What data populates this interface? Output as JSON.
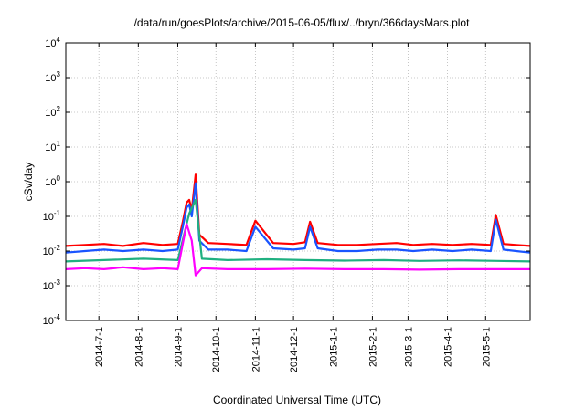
{
  "chart_data": {
    "type": "line",
    "title": "/data/run/goesPlots/archive/2015-06-05/flux/../bryn/366daysMars.plot",
    "xlabel": "Coordinated Universal Time (UTC)",
    "ylabel": "cSv/day",
    "yscale": "log",
    "ylim": [
      0.0001,
      10000
    ],
    "xlim": [
      "2014-06-05",
      "2015-06-05"
    ],
    "grid": true,
    "y_ticks": [
      {
        "base": "10",
        "exp": "-4",
        "value": 0.0001
      },
      {
        "base": "10",
        "exp": "-3",
        "value": 0.001
      },
      {
        "base": "10",
        "exp": "-2",
        "value": 0.01
      },
      {
        "base": "10",
        "exp": "-1",
        "value": 0.1
      },
      {
        "base": "10",
        "exp": "0",
        "value": 1
      },
      {
        "base": "10",
        "exp": "1",
        "value": 10
      },
      {
        "base": "10",
        "exp": "2",
        "value": 100
      },
      {
        "base": "10",
        "exp": "3",
        "value": 1000
      },
      {
        "base": "10",
        "exp": "4",
        "value": 10000
      }
    ],
    "x_ticks": [
      "2014-7-1",
      "2014-8-1",
      "2014-9-1",
      "2014-10-1",
      "2014-11-1",
      "2014-12-1",
      "2015-1-1",
      "2015-2-1",
      "2015-3-1",
      "2015-4-1",
      "2015-5-1"
    ],
    "series": [
      {
        "color": "#ff0000",
        "x": [
          "2014-06-05",
          "2014-06-20",
          "2014-07-05",
          "2014-07-20",
          "2014-08-05",
          "2014-08-20",
          "2014-09-01",
          "2014-09-05",
          "2014-09-08",
          "2014-09-10",
          "2014-09-12",
          "2014-09-15",
          "2014-09-18",
          "2014-09-25",
          "2014-10-10",
          "2014-10-25",
          "2014-11-01",
          "2014-11-15",
          "2014-12-01",
          "2014-12-10",
          "2014-12-14",
          "2014-12-20",
          "2015-01-05",
          "2015-01-20",
          "2015-02-05",
          "2015-02-20",
          "2015-03-05",
          "2015-03-20",
          "2015-04-05",
          "2015-04-20",
          "2015-05-05",
          "2015-05-09",
          "2015-05-15",
          "2015-05-25",
          "2015-06-05"
        ],
        "y": [
          0.014,
          0.015,
          0.016,
          0.014,
          0.017,
          0.015,
          0.016,
          0.07,
          0.25,
          0.3,
          0.15,
          1.6,
          0.03,
          0.017,
          0.016,
          0.015,
          0.075,
          0.017,
          0.016,
          0.018,
          0.07,
          0.017,
          0.015,
          0.015,
          0.016,
          0.017,
          0.015,
          0.016,
          0.015,
          0.016,
          0.015,
          0.11,
          0.016,
          0.015,
          0.014
        ]
      },
      {
        "color": "#1a55ff",
        "x": [
          "2014-06-05",
          "2014-06-20",
          "2014-07-05",
          "2014-07-20",
          "2014-08-05",
          "2014-08-20",
          "2014-09-01",
          "2014-09-05",
          "2014-09-08",
          "2014-09-10",
          "2014-09-12",
          "2014-09-15",
          "2014-09-18",
          "2014-09-25",
          "2014-10-10",
          "2014-10-25",
          "2014-11-01",
          "2014-11-15",
          "2014-12-01",
          "2014-12-10",
          "2014-12-14",
          "2014-12-20",
          "2015-01-05",
          "2015-01-20",
          "2015-02-05",
          "2015-02-20",
          "2015-03-05",
          "2015-03-20",
          "2015-04-05",
          "2015-04-20",
          "2015-05-05",
          "2015-05-09",
          "2015-05-15",
          "2015-05-25",
          "2015-06-05"
        ],
        "y": [
          0.009,
          0.01,
          0.011,
          0.01,
          0.011,
          0.01,
          0.011,
          0.05,
          0.18,
          0.22,
          0.1,
          0.9,
          0.02,
          0.011,
          0.011,
          0.01,
          0.05,
          0.012,
          0.011,
          0.012,
          0.05,
          0.012,
          0.01,
          0.01,
          0.011,
          0.011,
          0.01,
          0.011,
          0.01,
          0.011,
          0.01,
          0.08,
          0.011,
          0.01,
          0.009
        ]
      },
      {
        "color": "#20b080",
        "x": [
          "2014-06-05",
          "2014-07-05",
          "2014-08-05",
          "2014-09-01",
          "2014-09-10",
          "2014-09-15",
          "2014-09-20",
          "2014-10-10",
          "2014-11-10",
          "2014-12-10",
          "2015-01-10",
          "2015-02-10",
          "2015-03-10",
          "2015-04-10",
          "2015-05-10",
          "2015-06-05"
        ],
        "y": [
          0.005,
          0.0055,
          0.006,
          0.0055,
          0.12,
          0.3,
          0.006,
          0.0055,
          0.0058,
          0.0055,
          0.0053,
          0.0055,
          0.0052,
          0.0054,
          0.0052,
          0.005
        ]
      },
      {
        "color": "#ff00ff",
        "x": [
          "2014-06-05",
          "2014-06-20",
          "2014-07-05",
          "2014-07-20",
          "2014-08-05",
          "2014-08-20",
          "2014-09-01",
          "2014-09-08",
          "2014-09-12",
          "2014-09-15",
          "2014-09-20",
          "2014-10-10",
          "2014-11-10",
          "2014-12-10",
          "2015-01-10",
          "2015-02-10",
          "2015-03-10",
          "2015-04-10",
          "2015-05-10",
          "2015-06-05"
        ],
        "y": [
          0.003,
          0.0032,
          0.003,
          0.0034,
          0.003,
          0.0032,
          0.003,
          0.06,
          0.02,
          0.002,
          0.0032,
          0.003,
          0.003,
          0.0031,
          0.003,
          0.003,
          0.0029,
          0.003,
          0.003,
          0.003
        ]
      }
    ]
  }
}
